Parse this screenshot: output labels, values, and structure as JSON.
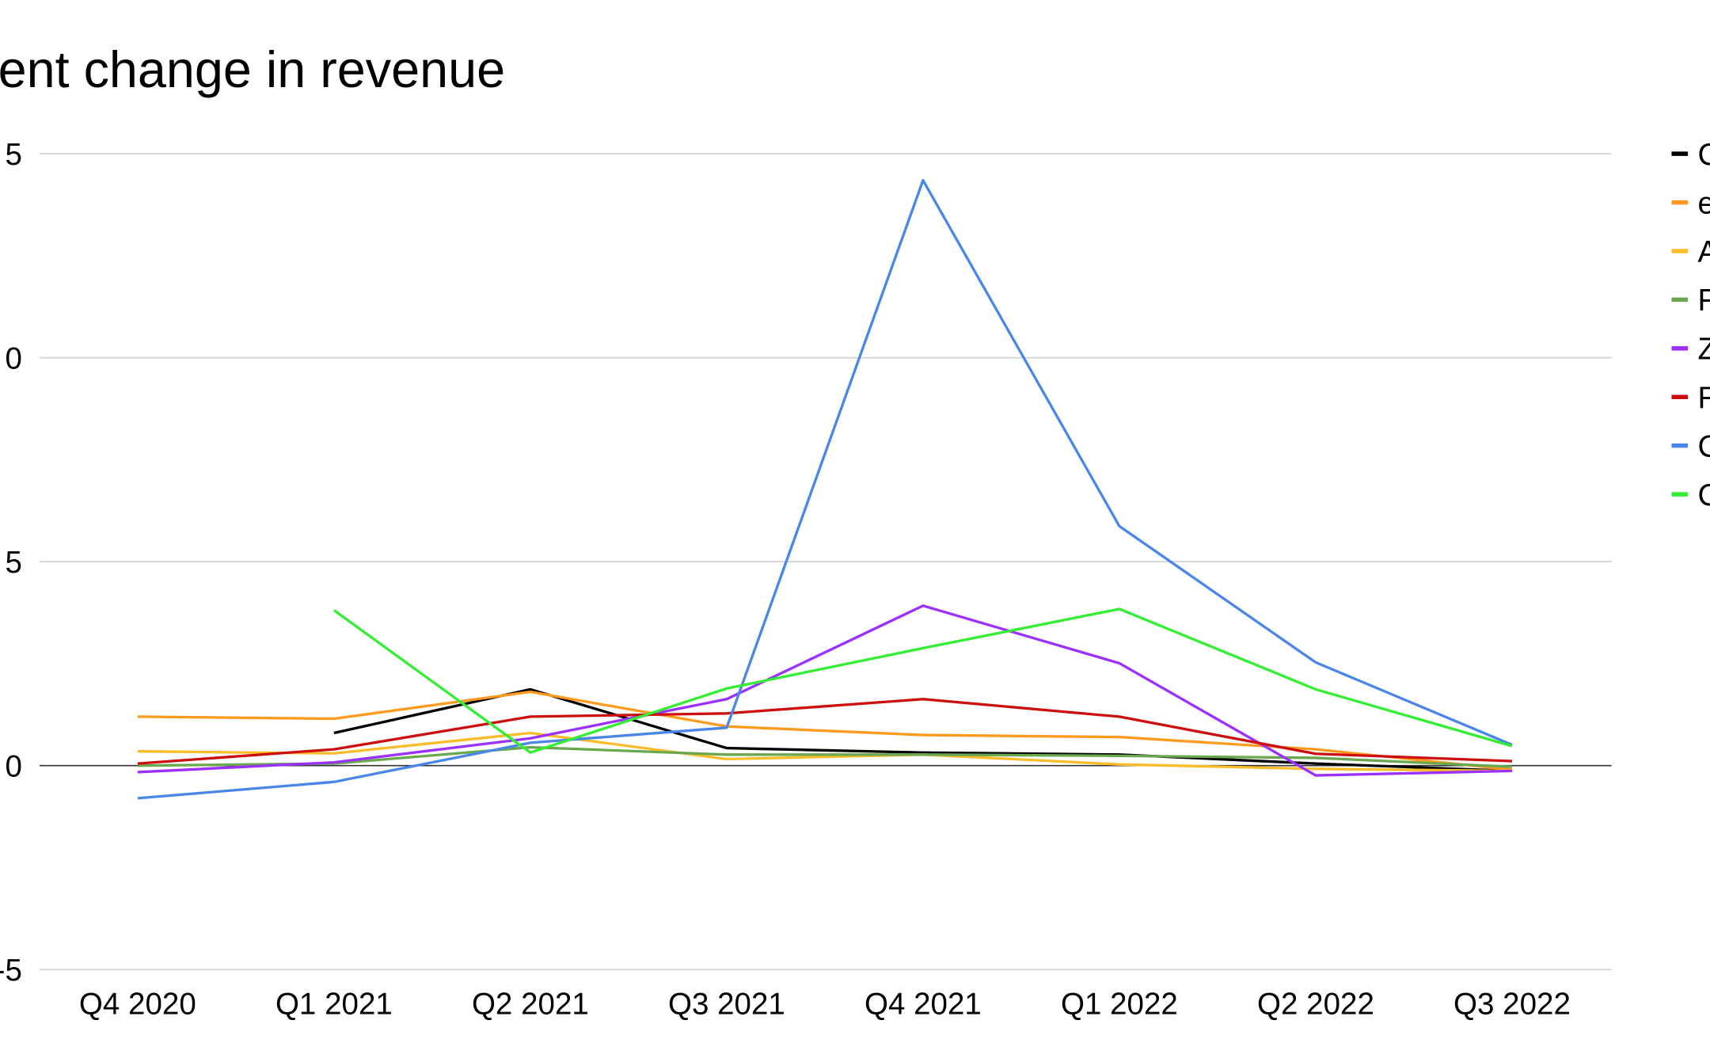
{
  "chart_data": {
    "type": "line",
    "title": "ent change in revenue",
    "categories": [
      "Q4 2020",
      "Q1 2021",
      "Q2 2021",
      "Q3 2021",
      "Q4 2021",
      "Q1 2022",
      "Q2 2022",
      "Q3 2022"
    ],
    "ylim": [
      -5,
      15
    ],
    "yticks": [
      {
        "value": 15,
        "label": "5"
      },
      {
        "value": 10,
        "label": "0"
      },
      5,
      0,
      -5
    ],
    "grid": true,
    "legend": "right",
    "series": [
      {
        "name": "C",
        "color": "#000000",
        "values": [
          null,
          0.8,
          1.87,
          0.43,
          0.32,
          0.27,
          0.05,
          -0.13
        ]
      },
      {
        "name": "e",
        "color": "#ff9a1f",
        "values": [
          1.2,
          1.15,
          1.81,
          0.96,
          0.75,
          0.7,
          0.4,
          -0.1
        ]
      },
      {
        "name": "A",
        "color": "#fbbc2a",
        "values": [
          0.35,
          0.3,
          0.8,
          0.16,
          0.27,
          0.03,
          -0.08,
          -0.13
        ]
      },
      {
        "name": "F",
        "color": "#6aa84f",
        "values": [
          0,
          0.05,
          0.45,
          0.27,
          0.27,
          0.24,
          0.19,
          -0.03
        ]
      },
      {
        "name": "Z",
        "color": "#9b30ff",
        "values": [
          -0.16,
          0.08,
          0.67,
          1.63,
          3.92,
          2.51,
          -0.24,
          -0.13
        ]
      },
      {
        "name": "R",
        "color": "#cc0e0e",
        "values": [
          0.05,
          0.4,
          1.2,
          1.28,
          1.63,
          1.2,
          0.29,
          0.11
        ]
      },
      {
        "name": "C",
        "color": "#4a86e8",
        "values": [
          -0.8,
          -0.4,
          0.56,
          0.93,
          14.35,
          5.87,
          2.53,
          0.51
        ]
      },
      {
        "name": "C",
        "color": "#33ee33",
        "values": [
          null,
          3.81,
          0.32,
          1.89,
          2.88,
          3.84,
          1.87,
          0.48
        ]
      }
    ]
  }
}
